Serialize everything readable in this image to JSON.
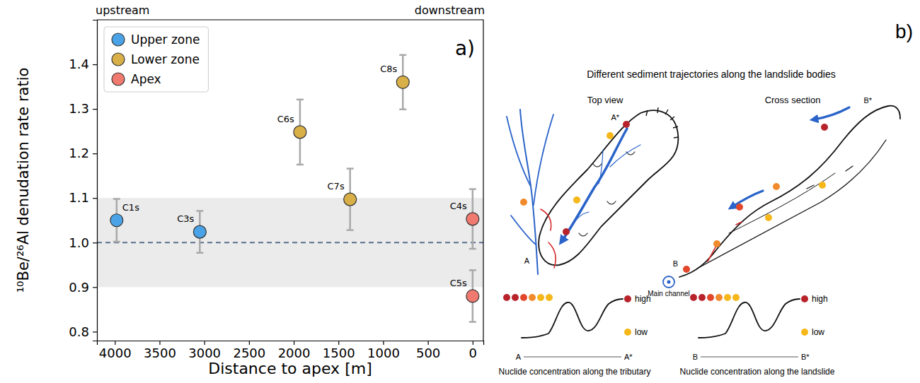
{
  "chart_data": {
    "type": "scatter",
    "x_label": "Distance to apex [m]",
    "y_label": "¹⁰Be/²⁶Al denudation rate ratio",
    "upstream_label": "upstream",
    "downstream_label": "downstream",
    "panel_label": "a)",
    "xlim": [
      4200,
      -120
    ],
    "ylim": [
      0.78,
      1.5
    ],
    "xticks": [
      4000,
      3500,
      3000,
      2500,
      2000,
      1500,
      1000,
      500,
      0
    ],
    "yticks": [
      0.8,
      0.9,
      {
        "value": 1,
        "label": "1.0"
      },
      1.1,
      1.2,
      1.3,
      1.4
    ],
    "grid": false,
    "legend": "upper left",
    "marker": "circle",
    "band": [
      0.9,
      1.1
    ],
    "reference_line": 1,
    "series": [
      {
        "name": "Upper zone",
        "color": "#4aa3e6",
        "x": [
          3980,
          3050
        ],
        "values": [
          1.05,
          1.024
        ],
        "errors": [
          0.048,
          0.047
        ],
        "point_labels": [
          "C1s",
          "C3s"
        ]
      },
      {
        "name": "Lower zone",
        "color": "#d9b048",
        "x": [
          1930,
          1370,
          780
        ],
        "values": [
          1.248,
          1.097,
          1.36
        ],
        "errors": [
          0.073,
          0.069,
          0.061
        ],
        "point_labels": [
          "C6s",
          "C7s",
          "C8s"
        ]
      },
      {
        "name": "Apex",
        "color": "#f07a70",
        "x": [
          0,
          0
        ],
        "values": [
          1.053,
          0.88
        ],
        "errors": [
          0.067,
          0.058
        ],
        "point_labels": [
          "C4s",
          "C5s"
        ]
      }
    ]
  },
  "diagram": {
    "panel_label": "b)",
    "title": "Different sediment trajectories along the landslide bodies",
    "panels": [
      {
        "title": "Top view",
        "start_label": "A",
        "end_label": "A*",
        "high_label": "high",
        "low_label": "low",
        "caption": "Nuclide concentration along the tributary"
      },
      {
        "title": "Cross section",
        "start_label": "B",
        "end_label": "B*",
        "channel_label": "Main channel",
        "high_label": "high",
        "low_label": "low",
        "caption": "Nuclide concentration along the landslide"
      }
    ]
  }
}
